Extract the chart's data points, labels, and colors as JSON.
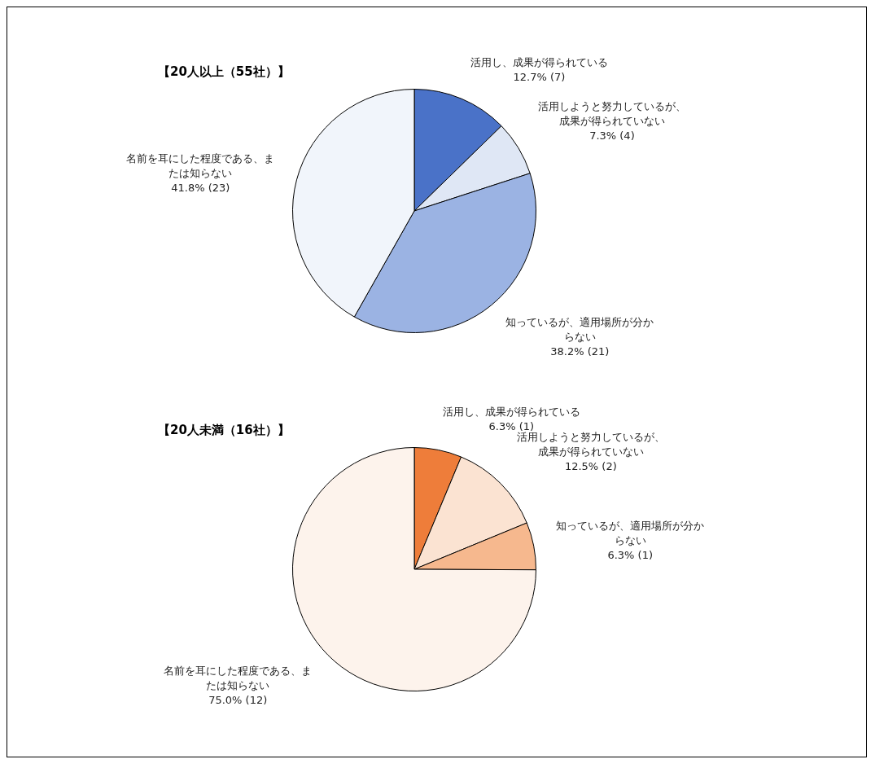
{
  "chart_data": [
    {
      "type": "pie",
      "title": "【20人以上（55社）】",
      "categories": [
        "活用し、成果が得られている",
        "活用しようと努力しているが、成果が得られていない",
        "知っているが、適用場所が分からない",
        "名前を耳にした程度である、または知らない"
      ],
      "values": [
        12.7,
        7.3,
        38.2,
        41.8
      ],
      "value_labels": [
        "12.7% (7)",
        "7.3% (4)",
        "38.2% (21)",
        "41.8% (23)"
      ],
      "colors": [
        "#4a72c8",
        "#dfe7f5",
        "#9bb3e3",
        "#f1f5fb"
      ]
    },
    {
      "type": "pie",
      "title": "【20人未満（16社）】",
      "categories": [
        "活用し、成果が得られている",
        "活用しようと努力しているが、成果が得られていない",
        "知っているが、適用場所が分からない",
        "名前を耳にした程度である、または知らない"
      ],
      "values": [
        6.3,
        12.5,
        6.3,
        75.0
      ],
      "value_labels": [
        "6.3% (1)",
        "12.5% (2)",
        "6.3% (1)",
        "75.0% (12)"
      ],
      "colors": [
        "#ee7d3a",
        "#fbe3d2",
        "#f6b88e",
        "#fdf3ec"
      ]
    }
  ]
}
